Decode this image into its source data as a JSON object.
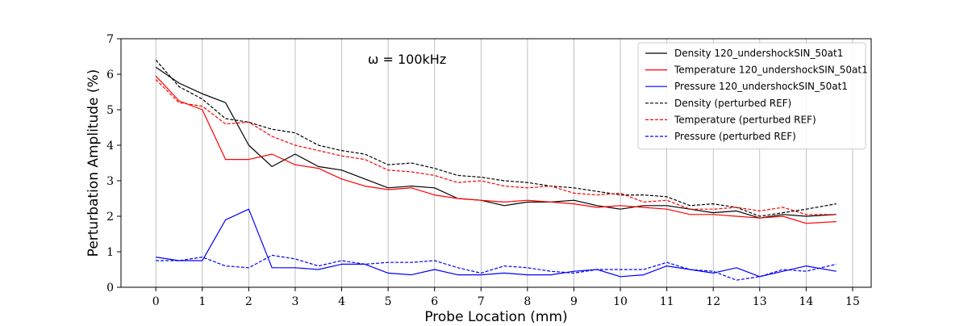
{
  "chart_data": {
    "type": "line",
    "xlabel": "Probe Location (mm)",
    "ylabel": "Perturbation Amplitude (%)",
    "xlim": [
      -0.75,
      15.4
    ],
    "ylim": [
      0,
      7
    ],
    "xticks": [
      0,
      1,
      2,
      3,
      4,
      5,
      6,
      7,
      8,
      9,
      10,
      11,
      12,
      13,
      14,
      15
    ],
    "yticks": [
      0,
      1,
      2,
      3,
      4,
      5,
      6,
      7
    ],
    "grid": "vertical",
    "legend_position": "top-right",
    "annotation": "ω = 100kHz",
    "x": [
      0,
      0.5,
      1,
      1.5,
      2,
      2.5,
      3,
      3.5,
      4,
      4.5,
      5,
      5.5,
      6,
      6.5,
      7,
      7.5,
      8,
      8.5,
      9,
      9.5,
      10,
      10.5,
      11,
      11.5,
      12,
      12.5,
      13,
      13.5,
      14,
      14.65
    ],
    "series": [
      {
        "name": "Density 120_undershockSIN_50at1",
        "color": "#000000",
        "dash": "solid",
        "values": [
          6.2,
          5.75,
          5.45,
          5.2,
          4.0,
          3.4,
          3.75,
          3.4,
          3.3,
          3.05,
          2.8,
          2.85,
          2.8,
          2.5,
          2.45,
          2.3,
          2.4,
          2.4,
          2.45,
          2.3,
          2.2,
          2.3,
          2.3,
          2.2,
          2.1,
          2.15,
          1.95,
          2.05,
          2.0,
          2.05
        ]
      },
      {
        "name": "Temperature 120_undershockSIN_50at1",
        "color": "#ff0000",
        "dash": "solid",
        "values": [
          5.95,
          5.25,
          5.0,
          3.6,
          3.6,
          3.75,
          3.45,
          3.35,
          3.05,
          2.85,
          2.75,
          2.8,
          2.6,
          2.5,
          2.45,
          2.4,
          2.45,
          2.4,
          2.35,
          2.25,
          2.3,
          2.25,
          2.2,
          2.05,
          2.05,
          2.0,
          1.95,
          2.0,
          1.8,
          1.85
        ]
      },
      {
        "name": "Pressure 120_undershockSIN_50at1",
        "color": "#0000ff",
        "dash": "solid",
        "values": [
          0.85,
          0.75,
          0.75,
          1.9,
          2.2,
          0.55,
          0.55,
          0.5,
          0.65,
          0.65,
          0.4,
          0.35,
          0.5,
          0.35,
          0.35,
          0.4,
          0.35,
          0.35,
          0.45,
          0.5,
          0.3,
          0.35,
          0.6,
          0.5,
          0.4,
          0.55,
          0.3,
          0.45,
          0.6,
          0.45
        ]
      },
      {
        "name": "Density (perturbed REF)",
        "color": "#000000",
        "dash": "dashed",
        "values": [
          6.4,
          5.65,
          5.3,
          4.75,
          4.65,
          4.45,
          4.35,
          4.0,
          3.85,
          3.75,
          3.45,
          3.5,
          3.35,
          3.15,
          3.1,
          3.0,
          2.95,
          2.85,
          2.8,
          2.7,
          2.6,
          2.6,
          2.55,
          2.3,
          2.35,
          2.25,
          2.0,
          2.1,
          2.2,
          2.35
        ]
      },
      {
        "name": "Temperature (perturbed REF)",
        "color": "#ff0000",
        "dash": "dashed",
        "values": [
          5.85,
          5.2,
          5.1,
          4.6,
          4.65,
          4.25,
          4.0,
          3.85,
          3.7,
          3.6,
          3.3,
          3.25,
          3.15,
          2.95,
          3.0,
          2.85,
          2.8,
          2.85,
          2.65,
          2.6,
          2.65,
          2.4,
          2.45,
          2.2,
          2.2,
          2.25,
          2.15,
          2.25,
          2.05,
          2.05
        ]
      },
      {
        "name": "Pressure (perturbed REF)",
        "color": "#0000ff",
        "dash": "dashed",
        "values": [
          0.75,
          0.75,
          0.85,
          0.6,
          0.55,
          0.9,
          0.8,
          0.6,
          0.75,
          0.65,
          0.7,
          0.7,
          0.75,
          0.55,
          0.4,
          0.6,
          0.55,
          0.45,
          0.4,
          0.5,
          0.5,
          0.5,
          0.7,
          0.5,
          0.45,
          0.2,
          0.3,
          0.5,
          0.45,
          0.65
        ]
      }
    ]
  }
}
